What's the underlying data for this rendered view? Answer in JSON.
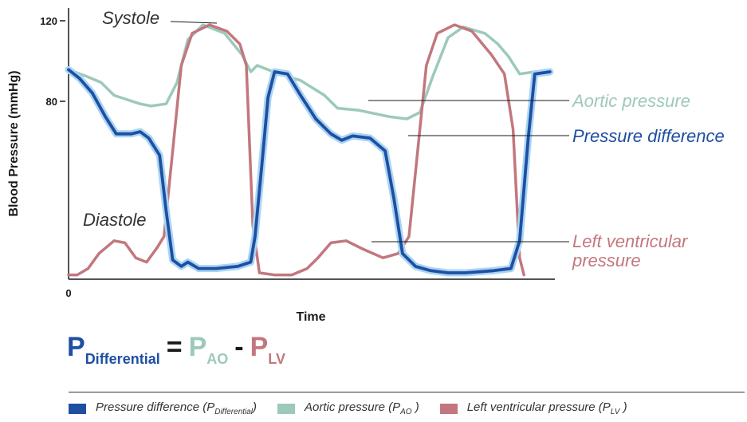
{
  "colors": {
    "pressure_difference": "#1f4fa3",
    "pressure_difference_glow": "#a9d5f2",
    "aortic_pressure": "#9cc9bb",
    "left_ventricular_pressure": "#c2777e"
  },
  "chart_data": {
    "type": "line",
    "xlabel": "Time",
    "ylabel": "Blood Pressure (mmHg)",
    "y_ticks": [
      "120",
      "80"
    ],
    "x_ticks": [
      "0"
    ],
    "ylim": [
      0,
      120
    ],
    "grid": false,
    "annotations": {
      "systole": "Systole",
      "diastole": "Diastole",
      "aortic": "Aortic pressure",
      "difference": "Pressure difference",
      "lv_line1": "Left ventricular",
      "lv_line2": "pressure"
    },
    "series": [
      {
        "name": "Aortic pressure",
        "key": "ao",
        "points": [
          [
            0,
            98
          ],
          [
            8,
            95
          ],
          [
            15,
            92
          ],
          [
            21,
            86
          ],
          [
            27,
            84
          ],
          [
            33,
            82
          ],
          [
            38,
            81
          ],
          [
            45,
            82
          ],
          [
            50,
            92
          ],
          [
            55,
            112
          ],
          [
            62,
            119
          ],
          [
            72,
            115
          ],
          [
            80,
            105
          ],
          [
            84,
            97
          ],
          [
            87,
            100
          ],
          [
            97,
            96
          ],
          [
            107,
            93
          ],
          [
            118,
            86
          ],
          [
            124,
            80
          ],
          [
            134,
            79
          ],
          [
            148,
            76
          ],
          [
            156,
            75
          ],
          [
            162,
            78
          ],
          [
            168,
            95
          ],
          [
            175,
            113
          ],
          [
            182,
            118
          ],
          [
            192,
            115
          ],
          [
            198,
            110
          ],
          [
            203,
            104
          ],
          [
            208,
            96
          ],
          [
            215,
            97
          ],
          [
            222,
            96
          ]
        ]
      },
      {
        "name": "Left ventricular pressure",
        "key": "lv",
        "points": [
          [
            0,
            2
          ],
          [
            4,
            2
          ],
          [
            9,
            5
          ],
          [
            14,
            12
          ],
          [
            21,
            18
          ],
          [
            26,
            17
          ],
          [
            31,
            10
          ],
          [
            36,
            8
          ],
          [
            41,
            15
          ],
          [
            44,
            20
          ],
          [
            48,
            60
          ],
          [
            52,
            100
          ],
          [
            57,
            115
          ],
          [
            65,
            119
          ],
          [
            73,
            116
          ],
          [
            79,
            110
          ],
          [
            82,
            100
          ],
          [
            85,
            25
          ],
          [
            88,
            3
          ],
          [
            95,
            2
          ],
          [
            103,
            2
          ],
          [
            110,
            5
          ],
          [
            115,
            10
          ],
          [
            121,
            17
          ],
          [
            128,
            18
          ],
          [
            136,
            14
          ],
          [
            145,
            10
          ],
          [
            152,
            12
          ],
          [
            157,
            20
          ],
          [
            161,
            60
          ],
          [
            165,
            100
          ],
          [
            170,
            115
          ],
          [
            178,
            119
          ],
          [
            186,
            116
          ],
          [
            195,
            105
          ],
          [
            201,
            96
          ],
          [
            205,
            70
          ],
          [
            208,
            10
          ],
          [
            210,
            2
          ]
        ]
      },
      {
        "name": "Pressure difference",
        "key": "diff",
        "points": [
          [
            0,
            98
          ],
          [
            5,
            94
          ],
          [
            11,
            87
          ],
          [
            17,
            76
          ],
          [
            22,
            68
          ],
          [
            29,
            68
          ],
          [
            33,
            69
          ],
          [
            37,
            66
          ],
          [
            42,
            58
          ],
          [
            45,
            32
          ],
          [
            48,
            9
          ],
          [
            52,
            6
          ],
          [
            55,
            8
          ],
          [
            60,
            5
          ],
          [
            68,
            5
          ],
          [
            78,
            6
          ],
          [
            84,
            8
          ],
          [
            86,
            20
          ],
          [
            89,
            52
          ],
          [
            92,
            85
          ],
          [
            95,
            97
          ],
          [
            101,
            96
          ],
          [
            107,
            86
          ],
          [
            114,
            75
          ],
          [
            121,
            68
          ],
          [
            126,
            65
          ],
          [
            131,
            67
          ],
          [
            139,
            66
          ],
          [
            146,
            60
          ],
          [
            150,
            38
          ],
          [
            154,
            12
          ],
          [
            160,
            6
          ],
          [
            167,
            4
          ],
          [
            175,
            3
          ],
          [
            183,
            3
          ],
          [
            196,
            4
          ],
          [
            204,
            5
          ],
          [
            208,
            18
          ],
          [
            212,
            66
          ],
          [
            215,
            96
          ],
          [
            222,
            97
          ]
        ]
      }
    ]
  },
  "formula": {
    "p_diff": "P",
    "sub_diff": "Differential",
    "equals": "=",
    "p_ao": "P",
    "sub_ao": "AO",
    "minus": "-",
    "p_lv": "P",
    "sub_lv": "LV"
  },
  "legend": {
    "diff_label": "Pressure difference (P",
    "diff_sub": "Differential",
    "diff_close": ")",
    "ao_label": "Aortic pressure (P",
    "ao_sub": "AO",
    "ao_close": " )",
    "lv_label": "Left ventricular pressure (P",
    "lv_sub": "LV",
    "lv_close": " )"
  }
}
